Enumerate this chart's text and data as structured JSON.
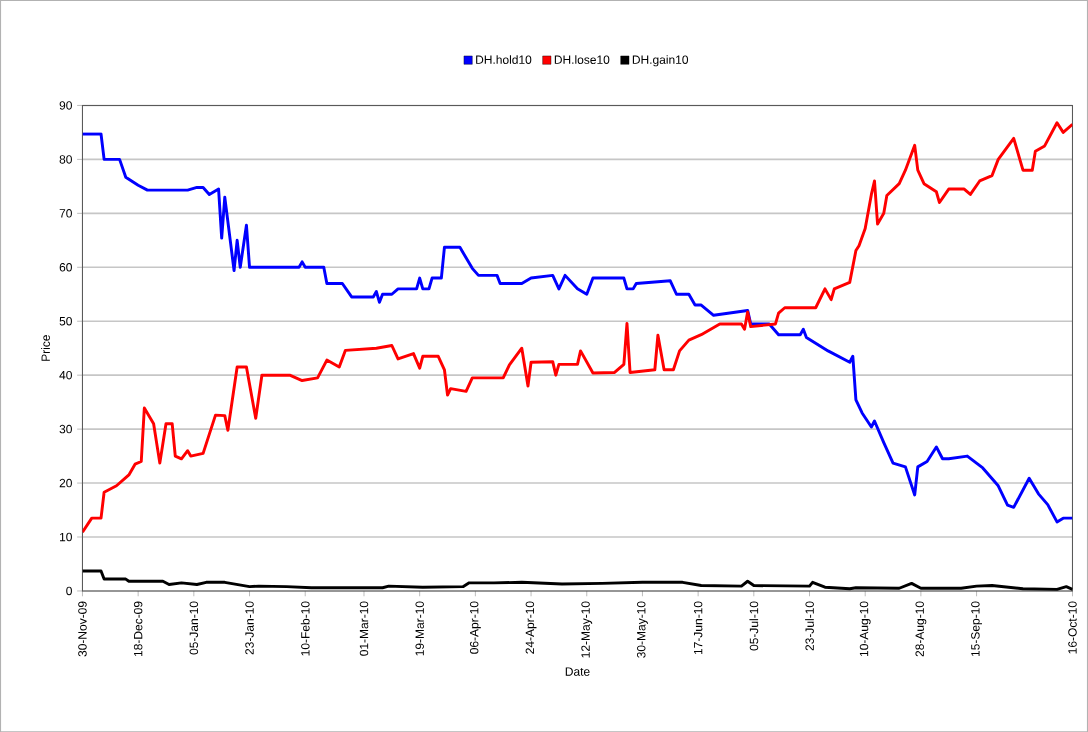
{
  "chart_data": {
    "type": "line",
    "xlabel": "Date",
    "ylabel": "Price",
    "legend": "top",
    "grid": "y",
    "xlim": [
      "2009-11-30",
      "2010-10-16"
    ],
    "ylim": [
      0,
      90
    ],
    "yticks": [
      0,
      10,
      20,
      30,
      40,
      50,
      60,
      70,
      80,
      90
    ],
    "xticks": [
      {
        "value": "2009-11-30",
        "label": "30-Nov-09"
      },
      {
        "value": "2009-12-18",
        "label": "18-Dec-09"
      },
      {
        "value": "2010-01-05",
        "label": "05-Jan-10"
      },
      {
        "value": "2010-01-23",
        "label": "23-Jan-10"
      },
      {
        "value": "2010-02-10",
        "label": "10-Feb-10"
      },
      {
        "value": "2010-03-01",
        "label": "01-Mar-10"
      },
      {
        "value": "2010-03-19",
        "label": "19-Mar-10"
      },
      {
        "value": "2010-04-06",
        "label": "06-Apr-10"
      },
      {
        "value": "2010-04-24",
        "label": "24-Apr-10"
      },
      {
        "value": "2010-05-12",
        "label": "12-May-10"
      },
      {
        "value": "2010-05-30",
        "label": "30-May-10"
      },
      {
        "value": "2010-06-17",
        "label": "17-Jun-10"
      },
      {
        "value": "2010-07-05",
        "label": "05-Jul-10"
      },
      {
        "value": "2010-07-23",
        "label": "23-Jul-10"
      },
      {
        "value": "2010-08-10",
        "label": "10-Aug-10"
      },
      {
        "value": "2010-08-28",
        "label": "28-Aug-10"
      },
      {
        "value": "2010-09-15",
        "label": "15-Sep-10"
      },
      {
        "value": "2010-10-16",
        "label": "16-Oct-10"
      }
    ],
    "series": [
      {
        "name": "DH.hold10",
        "color": "#0000ff",
        "x": [
          "2009-11-30",
          "2009-12-06",
          "2009-12-07",
          "2009-12-12",
          "2009-12-14",
          "2009-12-18",
          "2009-12-21",
          "2010-01-03",
          "2010-01-06",
          "2010-01-08",
          "2010-01-10",
          "2010-01-13",
          "2010-01-14",
          "2010-01-15",
          "2010-01-18",
          "2010-01-19",
          "2010-01-20",
          "2010-01-22",
          "2010-01-23",
          "2010-02-08",
          "2010-02-09",
          "2010-02-10",
          "2010-02-16",
          "2010-02-17",
          "2010-02-22",
          "2010-02-25",
          "2010-03-04",
          "2010-03-05",
          "2010-03-06",
          "2010-03-07",
          "2010-03-10",
          "2010-03-12",
          "2010-03-18",
          "2010-03-19",
          "2010-03-20",
          "2010-03-22",
          "2010-03-23",
          "2010-03-26",
          "2010-03-27",
          "2010-04-01",
          "2010-04-05",
          "2010-04-07",
          "2010-04-13",
          "2010-04-14",
          "2010-04-21",
          "2010-04-24",
          "2010-05-01",
          "2010-05-03",
          "2010-05-05",
          "2010-05-09",
          "2010-05-12",
          "2010-05-14",
          "2010-05-24",
          "2010-05-25",
          "2010-05-27",
          "2010-05-28",
          "2010-06-08",
          "2010-06-10",
          "2010-06-14",
          "2010-06-16",
          "2010-06-18",
          "2010-06-22",
          "2010-07-03",
          "2010-07-04",
          "2010-07-10",
          "2010-07-13",
          "2010-07-20",
          "2010-07-21",
          "2010-07-22",
          "2010-07-29",
          "2010-08-05",
          "2010-08-06",
          "2010-08-07",
          "2010-08-09",
          "2010-08-12",
          "2010-08-13",
          "2010-08-16",
          "2010-08-19",
          "2010-08-23",
          "2010-08-26",
          "2010-08-27",
          "2010-08-30",
          "2010-09-02",
          "2010-09-04",
          "2010-09-06",
          "2010-09-12",
          "2010-09-17",
          "2010-09-22",
          "2010-09-25",
          "2010-09-27",
          "2010-10-02",
          "2010-10-05",
          "2010-10-08",
          "2010-10-11",
          "2010-10-13",
          "2010-10-16"
        ],
        "values": [
          84.7,
          84.7,
          80,
          80,
          76.7,
          75.2,
          74.3,
          74.3,
          74.8,
          74.8,
          73.5,
          74.5,
          65.4,
          73,
          59.4,
          65,
          60,
          67.8,
          60,
          60,
          61,
          60,
          60,
          57,
          57,
          54.5,
          54.5,
          55.5,
          53.5,
          55,
          55,
          56,
          56,
          58,
          56,
          56,
          58,
          58,
          63.7,
          63.7,
          59.8,
          58.5,
          58.5,
          57,
          57,
          58,
          58.5,
          56,
          58.5,
          56,
          55,
          58,
          58,
          56,
          56,
          57,
          57.5,
          55,
          55,
          53,
          53,
          51.1,
          52,
          49.5,
          49.5,
          47.5,
          47.5,
          48.5,
          47,
          44.5,
          42.4,
          43.5,
          35.4,
          33,
          30.4,
          31.5,
          27.5,
          23.7,
          23,
          17.8,
          23,
          24,
          26.7,
          24.5,
          24.5,
          25,
          22.8,
          19.5,
          15.9,
          15.5,
          20.9,
          18,
          16,
          12.8,
          13.5,
          13.5
        ]
      },
      {
        "name": "DH.lose10",
        "color": "#ff0000",
        "x": [
          "2009-11-30",
          "2009-12-03",
          "2009-12-06",
          "2009-12-07",
          "2009-12-11",
          "2009-12-14",
          "2009-12-15",
          "2009-12-17",
          "2009-12-19",
          "2009-12-20",
          "2009-12-23",
          "2009-12-25",
          "2009-12-27",
          "2009-12-29",
          "2009-12-30",
          "2010-01-01",
          "2010-01-03",
          "2010-01-04",
          "2010-01-08",
          "2010-01-12",
          "2010-01-15",
          "2010-01-16",
          "2010-01-19",
          "2010-01-22",
          "2010-01-25",
          "2010-01-27",
          "2010-02-05",
          "2010-02-09",
          "2010-02-14",
          "2010-02-17",
          "2010-02-21",
          "2010-02-23",
          "2010-03-05",
          "2010-03-10",
          "2010-03-12",
          "2010-03-17",
          "2010-03-19",
          "2010-03-20",
          "2010-03-25",
          "2010-03-27",
          "2010-03-28",
          "2010-03-29",
          "2010-04-03",
          "2010-04-05",
          "2010-04-15",
          "2010-04-17",
          "2010-04-21",
          "2010-04-23",
          "2010-04-24",
          "2010-05-01",
          "2010-05-02",
          "2010-05-03",
          "2010-05-09",
          "2010-05-10",
          "2010-05-14",
          "2010-05-21",
          "2010-05-24",
          "2010-05-25",
          "2010-05-26",
          "2010-06-03",
          "2010-06-04",
          "2010-06-06",
          "2010-06-09",
          "2010-06-11",
          "2010-06-14",
          "2010-06-18",
          "2010-06-24",
          "2010-07-01",
          "2010-07-02",
          "2010-07-03",
          "2010-07-04",
          "2010-07-12",
          "2010-07-13",
          "2010-07-15",
          "2010-07-25",
          "2010-07-28",
          "2010-07-30",
          "2010-07-31",
          "2010-08-05",
          "2010-08-07",
          "2010-08-08",
          "2010-08-10",
          "2010-08-12",
          "2010-08-13",
          "2010-08-14",
          "2010-08-16",
          "2010-08-17",
          "2010-08-21",
          "2010-08-23",
          "2010-08-26",
          "2010-08-27",
          "2010-08-29",
          "2010-09-02",
          "2010-09-03",
          "2010-09-06",
          "2010-09-11",
          "2010-09-13",
          "2010-09-16",
          "2010-09-20",
          "2010-09-22",
          "2010-09-27",
          "2010-09-30",
          "2010-10-03",
          "2010-10-04",
          "2010-10-07",
          "2010-10-11",
          "2010-10-13",
          "2010-10-16"
        ],
        "values": [
          10.9,
          13.5,
          13.5,
          18.3,
          19.5,
          21,
          21.5,
          23.5,
          24,
          33.9,
          31,
          23.7,
          31,
          31,
          25,
          24.5,
          26,
          25,
          25.5,
          32.6,
          32.5,
          29.8,
          41.5,
          41.5,
          32,
          40,
          40,
          39,
          39.5,
          42.8,
          41.5,
          44.6,
          45,
          45.5,
          43,
          44,
          41.3,
          43.5,
          43.5,
          41,
          36.3,
          37.5,
          37,
          39.5,
          39.5,
          41.9,
          45,
          38,
          42.4,
          42.5,
          40,
          42,
          42,
          44.5,
          40.4,
          40.5,
          42,
          49.6,
          40.5,
          41,
          47.4,
          41,
          41,
          44.5,
          46.5,
          47.5,
          49.5,
          49.5,
          48.5,
          51.7,
          49,
          49.5,
          51.5,
          52.5,
          52.5,
          56,
          54,
          56,
          57.2,
          63.1,
          64,
          67.2,
          73.5,
          76,
          68,
          70,
          73.3,
          75.5,
          78,
          82.6,
          78,
          75.5,
          74,
          72,
          74.5,
          74.5,
          73.5,
          76,
          77,
          80,
          83.9,
          78,
          78,
          81.5,
          82.5,
          86.8,
          85,
          86.5
        ]
      },
      {
        "name": "DH.gain10",
        "color": "#000000",
        "x": [
          "2009-11-30",
          "2009-12-06",
          "2009-12-07",
          "2009-12-14",
          "2009-12-15",
          "2009-12-26",
          "2009-12-28",
          "2010-01-01",
          "2010-01-06",
          "2010-01-09",
          "2010-01-15",
          "2010-01-23",
          "2010-01-26",
          "2010-02-04",
          "2010-02-12",
          "2010-03-07",
          "2010-03-09",
          "2010-03-20",
          "2010-04-02",
          "2010-04-04",
          "2010-04-12",
          "2010-04-21",
          "2010-05-04",
          "2010-05-17",
          "2010-05-30",
          "2010-06-12",
          "2010-06-18",
          "2010-07-01",
          "2010-07-03",
          "2010-07-05",
          "2010-07-23",
          "2010-07-24",
          "2010-07-28",
          "2010-08-05",
          "2010-08-07",
          "2010-08-21",
          "2010-08-25",
          "2010-08-28",
          "2010-09-10",
          "2010-09-15",
          "2010-09-20",
          "2010-09-30",
          "2010-10-11",
          "2010-10-14",
          "2010-10-16"
        ],
        "values": [
          3.7,
          3.7,
          2.2,
          2.2,
          1.8,
          1.8,
          1.2,
          1.5,
          1.2,
          1.6,
          1.6,
          0.8,
          0.9,
          0.8,
          0.6,
          0.6,
          0.9,
          0.7,
          0.8,
          1.5,
          1.5,
          1.6,
          1.3,
          1.4,
          1.6,
          1.6,
          1.0,
          0.9,
          1.8,
          1.0,
          0.9,
          1.6,
          0.7,
          0.4,
          0.6,
          0.5,
          1.4,
          0.5,
          0.5,
          0.9,
          1.0,
          0.4,
          0.3,
          0.8,
          0.3
        ]
      }
    ]
  }
}
